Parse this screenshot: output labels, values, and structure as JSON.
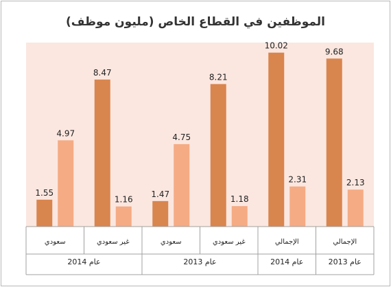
{
  "chart_data": {
    "type": "bar",
    "title": "الموظفين في القطاع الخاص (مليون موظف)",
    "groups": [
      {
        "category": "سعودي",
        "period": "عام 2014",
        "values": [
          1.55,
          4.97
        ]
      },
      {
        "category": "غير سعودي",
        "period": "عام 2014",
        "values": [
          8.47,
          1.16
        ]
      },
      {
        "category": "سعودي",
        "period": "عام 2013",
        "values": [
          1.47,
          4.75
        ]
      },
      {
        "category": "غير سعودي",
        "period": "عام 2013",
        "values": [
          8.21,
          1.18
        ]
      },
      {
        "category": "الإجمالي",
        "period": "عام 2014",
        "values": [
          10.02,
          2.31
        ]
      },
      {
        "category": "الإجمالي",
        "period": "عام 2013",
        "values": [
          9.68,
          2.13
        ]
      }
    ],
    "period_labels": [
      "عام 2014",
      "عام 2013",
      "عام 2014",
      "عام 2013"
    ],
    "bar_colors": [
      "#d9854e",
      "#f5ab84"
    ],
    "plot_background": "#fbe7e0",
    "ylim": [
      0,
      10.6
    ],
    "grid": false,
    "legend": "none"
  }
}
